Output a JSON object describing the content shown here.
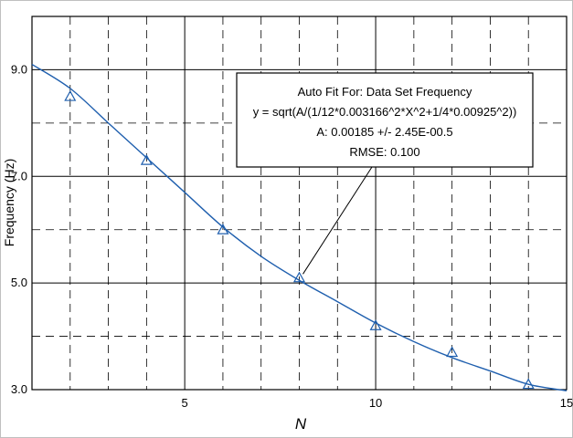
{
  "chart_data": {
    "type": "scatter",
    "title": "",
    "xlabel": "N",
    "ylabel": "Frequency (Hz)",
    "xlim": [
      1,
      15
    ],
    "ylim": [
      3.0,
      10.0
    ],
    "x_ticks": [
      5,
      10,
      15
    ],
    "y_ticks": [
      3.0,
      5.0,
      7.0,
      9.0
    ],
    "x_tick_labels": [
      "5",
      "10",
      "15"
    ],
    "y_tick_labels": [
      "3.0",
      "5.0",
      "7.0",
      "9.0"
    ],
    "grid": true,
    "series": [
      {
        "kind": "points",
        "marker": "triangle",
        "x": [
          2,
          4,
          6,
          8,
          10,
          12,
          14
        ],
        "y": [
          8.5,
          7.3,
          6.0,
          5.1,
          4.2,
          3.7,
          3.1
        ]
      },
      {
        "kind": "fit-curve",
        "x": [
          1,
          2,
          3,
          4,
          5,
          6,
          7,
          8,
          9,
          10,
          11,
          12,
          13,
          14,
          15
        ],
        "y": [
          9.1,
          8.65,
          8.0,
          7.35,
          6.7,
          6.05,
          5.5,
          5.05,
          4.65,
          4.25,
          3.9,
          3.6,
          3.35,
          3.1,
          2.98
        ]
      }
    ],
    "annotation": {
      "lines": [
        "Auto Fit For:  Data Set Frequency",
        "y = sqrt(A/(1/12*0.003166^2*X^2+1/4*0.00925^2))",
        "A: 0.00185 +/- 2.45E-00.5",
        "RMSE: 0.100"
      ],
      "arrow_target": {
        "x": 8,
        "y": 5.1
      }
    },
    "colors": {
      "curve": "#1f5fae",
      "marker": "#1f5fae",
      "grid": "#000000",
      "text": "#000000"
    }
  }
}
